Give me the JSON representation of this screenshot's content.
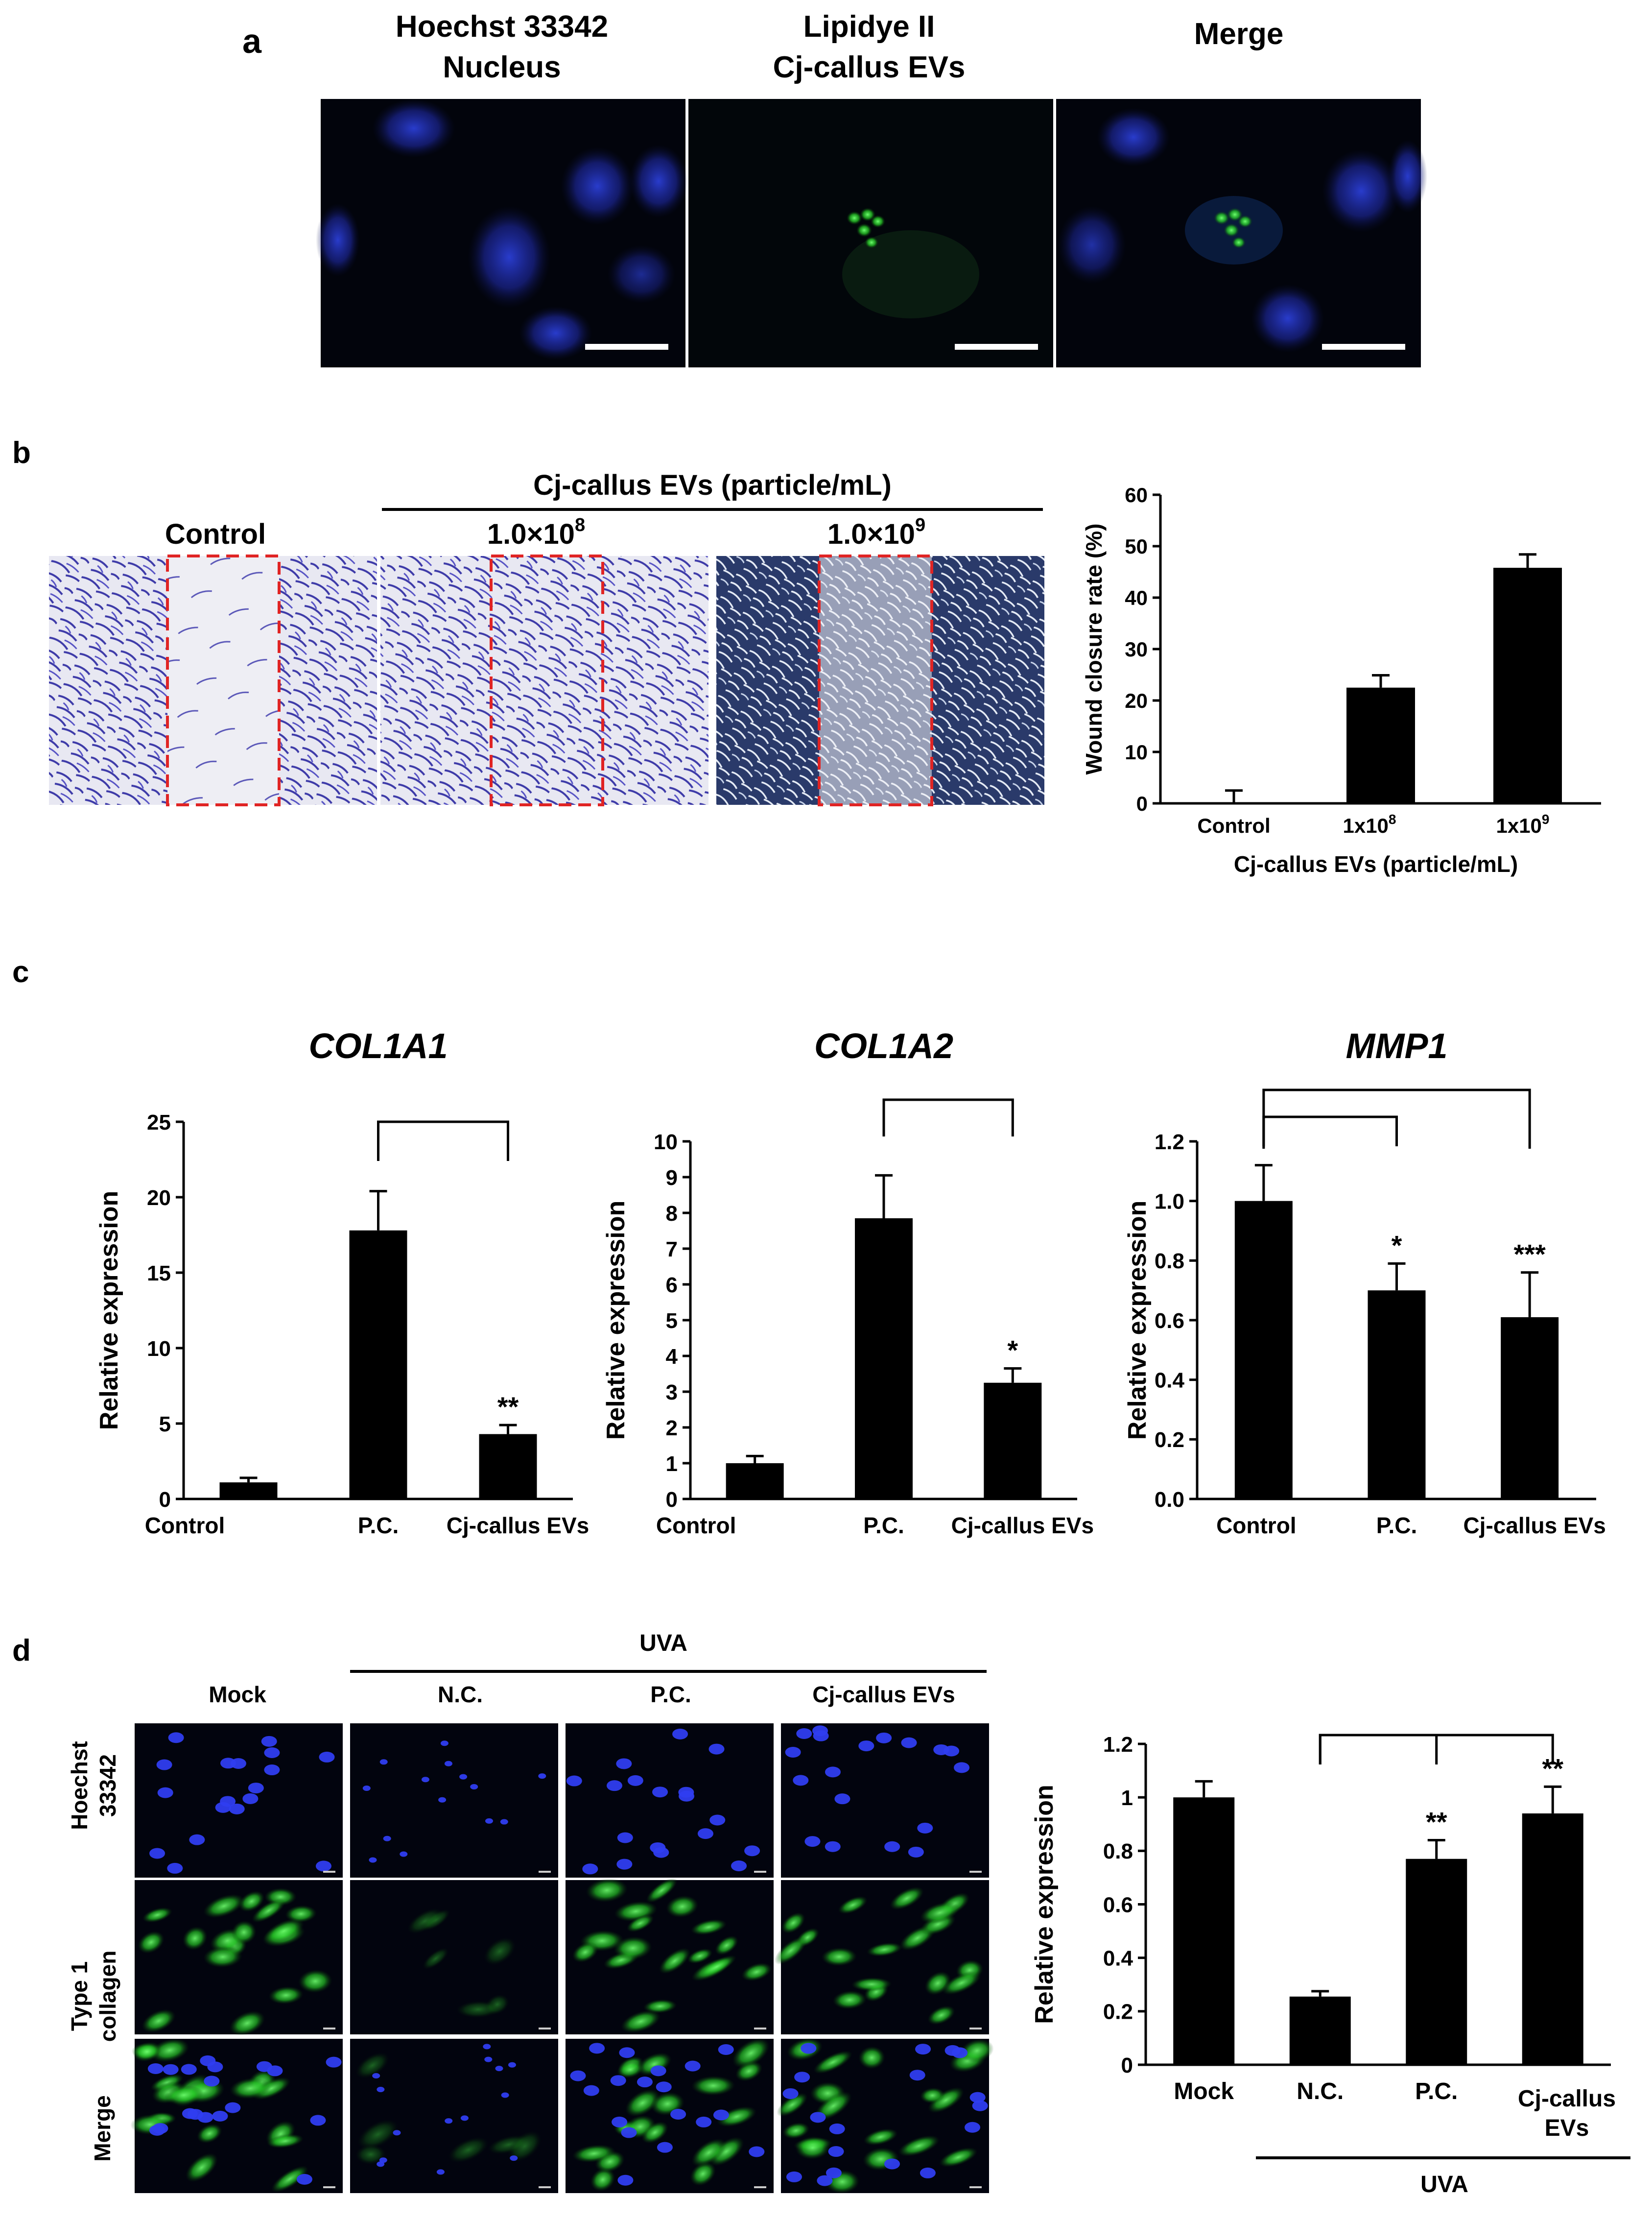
{
  "panel_a": {
    "letter": "a",
    "col1_line1": "Hoechst 33342",
    "col1_line2": "Nucleus",
    "col2_line1": "Lipidye II",
    "col2_line2": "Cj-callus EVs",
    "col3": "Merge"
  },
  "panel_b": {
    "letter": "b",
    "group_label": "Cj-callus EVs (particle/mL)",
    "img_control": "Control",
    "img_1e8_base": "1.0×10",
    "img_1e8_exp": "8",
    "img_1e9_base": "1.0×10",
    "img_1e9_exp": "9",
    "chart_xlabel": "Cj-callus  EVs (particle/mL)",
    "tick_control": "Control",
    "tick_1e8_base": "1x10",
    "tick_1e8_exp": "8",
    "tick_1e9_base": "1x10",
    "tick_1e9_exp": "9"
  },
  "panel_c": {
    "letter": "c"
  },
  "panel_d": {
    "letter": "d",
    "uva_top": "UVA",
    "col_mock": "Mock",
    "col_nc": "N.C.",
    "col_pc": "P.C.",
    "col_ev": "Cj-callus  EVs",
    "row1_line1": "Hoechst",
    "row1_line2": "33342",
    "row2_line1": "Type 1",
    "row2_line2": "collagen",
    "row3": "Merge",
    "uva_bottom": "UVA",
    "tick_ev_line1": "Cj-callus",
    "tick_ev_line2": "EVs"
  },
  "chart_data": [
    {
      "type": "bar",
      "categories": [
        "Control",
        "1x10^8",
        "1x10^9"
      ],
      "values": [
        0,
        22.5,
        45.8
      ],
      "errors": [
        2.5,
        2.4,
        2.6
      ],
      "ylabel": "Wound closure rate (%)",
      "ylim": [
        0,
        60
      ],
      "yticks": [
        0,
        10,
        20,
        30,
        40,
        50,
        60
      ]
    },
    {
      "type": "bar",
      "title": "COL1A1",
      "categories": [
        "Control",
        "P.C.",
        "Cj-callus EVs"
      ],
      "values": [
        1.1,
        17.8,
        4.3
      ],
      "errors": [
        0.3,
        2.6,
        0.6
      ],
      "significance": [
        "",
        "",
        "**"
      ],
      "ylabel": "Relative expression",
      "ylim": [
        0,
        25
      ],
      "yticks": [
        0,
        5,
        10,
        15,
        20,
        25
      ]
    },
    {
      "type": "bar",
      "title": "COL1A2",
      "categories": [
        "Control",
        "P.C.",
        "Cj-callus EVs"
      ],
      "values": [
        1.0,
        7.85,
        3.25
      ],
      "errors": [
        0.2,
        1.2,
        0.4
      ],
      "significance": [
        "",
        "",
        "*"
      ],
      "ylabel": "Relative expression",
      "ylim": [
        0,
        10
      ],
      "yticks": [
        0,
        1,
        2,
        3,
        4,
        5,
        6,
        7,
        8,
        9,
        10
      ]
    },
    {
      "type": "bar",
      "title": "MMP1",
      "categories": [
        "Control",
        "P.C.",
        "Cj-callus EVs"
      ],
      "values": [
        1.0,
        0.7,
        0.61
      ],
      "errors": [
        0.12,
        0.09,
        0.15
      ],
      "significance": [
        "",
        "*",
        "***"
      ],
      "ylabel": "Relative expression",
      "ylim": [
        0,
        1.2
      ],
      "yticks": [
        "0.0",
        "0.2",
        "0.4",
        "0.6",
        "0.8",
        "1.0",
        "1.2"
      ]
    },
    {
      "type": "bar",
      "categories": [
        "Mock",
        "N.C.",
        "P.C.",
        "Cj-callus EVs"
      ],
      "values": [
        1.0,
        0.255,
        0.77,
        0.94
      ],
      "errors": [
        0.06,
        0.02,
        0.07,
        0.1
      ],
      "significance": [
        "",
        "",
        "**",
        "**"
      ],
      "ylabel": "Relative expression",
      "ylim": [
        0,
        1.2
      ],
      "yticks": [
        "0",
        "0.2",
        "0.4",
        "0.6",
        "0.8",
        "1",
        "1.2"
      ]
    }
  ]
}
